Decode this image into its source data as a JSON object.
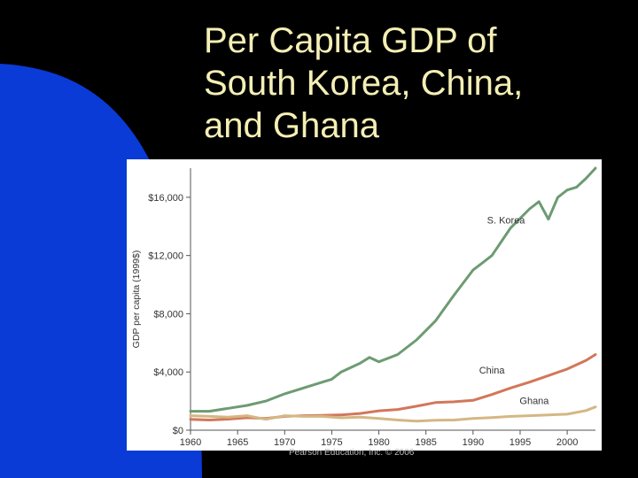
{
  "slide": {
    "title_lines": [
      "Per Capita GDP of",
      "South Korea, China,",
      "and Ghana"
    ],
    "credit": "Pearson Education, Inc. © 2006",
    "colors": {
      "background": "#000000",
      "blue_shape": "#0a3bd6",
      "title": "#f4efb4",
      "panel": "#ffffff"
    }
  },
  "chart_data": {
    "type": "line",
    "title": "",
    "xlabel": "",
    "ylabel": "GDP per capita (1999$)",
    "xlim": [
      1960,
      2003
    ],
    "ylim": [
      0,
      18000
    ],
    "xticks": [
      1960,
      1965,
      1970,
      1975,
      1980,
      1985,
      1990,
      1995,
      2000
    ],
    "yticks": [
      0,
      4000,
      8000,
      12000,
      16000
    ],
    "ytick_labels": [
      "$0",
      "$4,000",
      "$8,000",
      "$12,000",
      "$16,000"
    ],
    "grid": false,
    "series": [
      {
        "name": "S. Korea",
        "color": "#6d9b73",
        "x": [
          1960,
          1962,
          1964,
          1966,
          1968,
          1970,
          1972,
          1974,
          1975,
          1976,
          1978,
          1979,
          1980,
          1982,
          1984,
          1986,
          1988,
          1990,
          1991,
          1992,
          1994,
          1996,
          1997,
          1998,
          1999,
          2000,
          2001,
          2002,
          2003
        ],
        "y": [
          1300,
          1300,
          1500,
          1700,
          2000,
          2500,
          2900,
          3300,
          3500,
          4000,
          4600,
          5000,
          4700,
          5200,
          6200,
          7500,
          9300,
          11000,
          11500,
          12000,
          13900,
          15200,
          15700,
          14500,
          16000,
          16500,
          16700,
          17300,
          18000
        ]
      },
      {
        "name": "China",
        "color": "#d2775a",
        "x": [
          1960,
          1962,
          1964,
          1966,
          1968,
          1970,
          1972,
          1974,
          1976,
          1978,
          1980,
          1982,
          1984,
          1986,
          1988,
          1990,
          1992,
          1994,
          1996,
          1998,
          2000,
          2002,
          2003
        ],
        "y": [
          750,
          700,
          760,
          860,
          800,
          950,
          1000,
          1020,
          1050,
          1150,
          1330,
          1420,
          1650,
          1900,
          1950,
          2050,
          2450,
          2900,
          3300,
          3750,
          4200,
          4800,
          5200
        ]
      },
      {
        "name": "Ghana",
        "color": "#d4b783",
        "x": [
          1960,
          1962,
          1964,
          1966,
          1968,
          1970,
          1972,
          1974,
          1976,
          1978,
          1980,
          1982,
          1984,
          1986,
          1988,
          1990,
          1992,
          1994,
          1996,
          1998,
          2000,
          2002,
          2003
        ],
        "y": [
          1000,
          950,
          900,
          1000,
          750,
          1000,
          950,
          950,
          850,
          900,
          800,
          700,
          620,
          680,
          700,
          800,
          870,
          950,
          1000,
          1050,
          1100,
          1350,
          1600
        ]
      }
    ],
    "annotations": [
      "S. Korea",
      "China",
      "Ghana"
    ]
  }
}
